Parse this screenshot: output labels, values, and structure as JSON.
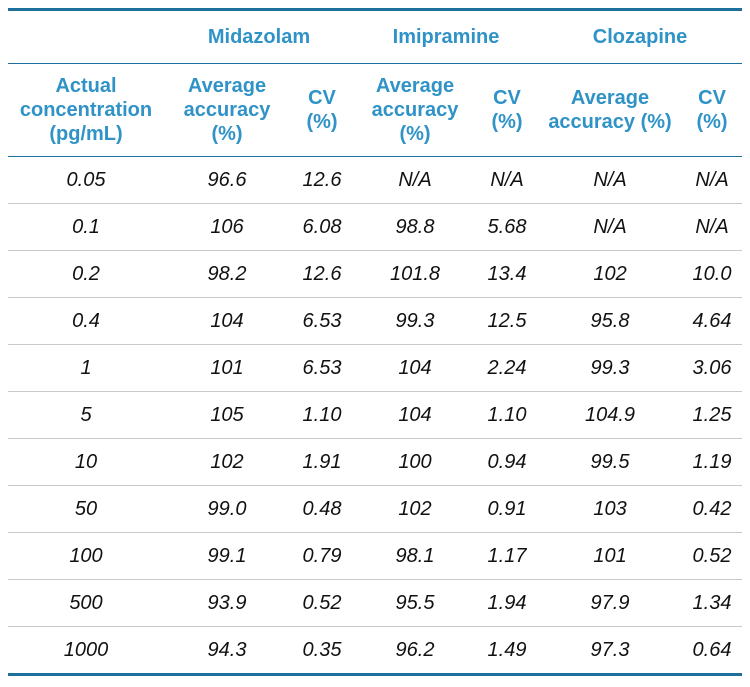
{
  "table": {
    "groups": [
      "",
      "Midazolam",
      "Imipramine",
      "Clozapine"
    ],
    "subheaders": [
      "Actual\nconcentration\n(pg/mL)",
      "Average\naccuracy\n(%)",
      "CV\n(%)",
      "Average\naccuracy\n(%)",
      "CV\n(%)",
      "Average\naccuracy (%)",
      "CV\n(%)"
    ],
    "rows": [
      [
        "0.05",
        "96.6",
        "12.6",
        "N/A",
        "N/A",
        "N/A",
        "N/A"
      ],
      [
        "0.1",
        "106",
        "6.08",
        "98.8",
        "5.68",
        "N/A",
        "N/A"
      ],
      [
        "0.2",
        "98.2",
        "12.6",
        "101.8",
        "13.4",
        "102",
        "10.0"
      ],
      [
        "0.4",
        "104",
        "6.53",
        "99.3",
        "12.5",
        "95.8",
        "4.64"
      ],
      [
        "1",
        "101",
        "6.53",
        "104",
        "2.24",
        "99.3",
        "3.06"
      ],
      [
        "5",
        "105",
        "1.10",
        "104",
        "1.10",
        "104.9",
        "1.25"
      ],
      [
        "10",
        "102",
        "1.91",
        "100",
        "0.94",
        "99.5",
        "1.19"
      ],
      [
        "50",
        "99.0",
        "0.48",
        "102",
        "0.91",
        "103",
        "0.42"
      ],
      [
        "100",
        "99.1",
        "0.79",
        "98.1",
        "1.17",
        "101",
        "0.52"
      ],
      [
        "500",
        "93.9",
        "0.52",
        "95.5",
        "1.94",
        "97.9",
        "1.34"
      ],
      [
        "1000",
        "94.3",
        "0.35",
        "96.2",
        "1.49",
        "97.3",
        "0.64"
      ]
    ]
  },
  "colors": {
    "header_text": "#2f93c7",
    "rule_dark": "#1d6f9c",
    "rule_light": "#c9c9c9",
    "body_text": "#111111"
  }
}
